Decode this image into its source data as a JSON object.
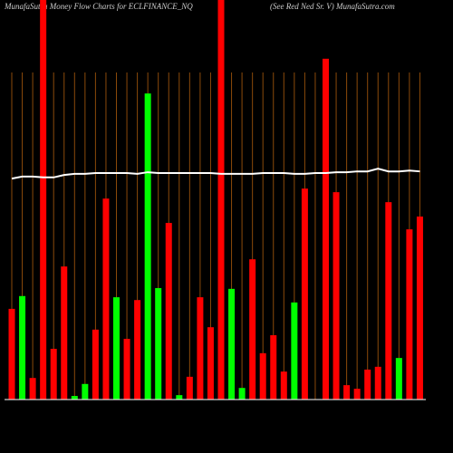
{
  "chart_data": {
    "type": "bar",
    "title": "MunafaSutra  Money Flow  Charts for ECLFINANCE_NQ",
    "subtitle": "(See Red Ned Sr. V) MunafaSutra.com",
    "categories": [
      null,
      null,
      null,
      null,
      null,
      null,
      null,
      null,
      null,
      null,
      null,
      null,
      null,
      null,
      null,
      null,
      null,
      null,
      null,
      null,
      null,
      null,
      null,
      null,
      null,
      null,
      null,
      null,
      null,
      null,
      null,
      null,
      null,
      null,
      null,
      null,
      null,
      null,
      null,
      null
    ],
    "values": [
      22.7,
      25.9,
      5.4,
      100,
      12.7,
      33.3,
      0.9,
      3.9,
      17.5,
      50.3,
      25.6,
      15.2,
      24.9,
      76.6,
      27.9,
      44.2,
      1.1,
      5.7,
      25.6,
      18.1,
      100,
      27.7,
      2.9,
      35.1,
      11.6,
      16.1,
      7.0,
      24.3,
      52.8,
      0,
      85.3,
      51.9,
      3.6,
      2.7,
      7.5,
      8.2,
      49.4,
      10.4,
      42.6,
      45.8
    ],
    "colors": [
      "#ff0000",
      "#00ff00",
      "#ff0000",
      "#ff0000",
      "#ff0000",
      "#ff0000",
      "#00ff00",
      "#00ff00",
      "#ff0000",
      "#ff0000",
      "#00ff00",
      "#ff0000",
      "#ff0000",
      "#00ff00",
      "#00ff00",
      "#ff0000",
      "#00ff00",
      "#ff0000",
      "#ff0000",
      "#ff0000",
      "#ff0000",
      "#00ff00",
      "#00ff00",
      "#ff0000",
      "#ff0000",
      "#ff0000",
      "#ff0000",
      "#00ff00",
      "#ff0000",
      "#ff0000",
      "#ff0000",
      "#ff0000",
      "#ff0000",
      "#ff0000",
      "#ff0000",
      "#ff0000",
      "#ff0000",
      "#00ff00",
      "#ff0000",
      "#ff0000"
    ],
    "line": {
      "color": "#ffffff",
      "values": [
        55.3,
        55.8,
        55.8,
        55.6,
        55.6,
        56.2,
        56.5,
        56.5,
        56.7,
        56.7,
        56.7,
        56.7,
        56.5,
        56.9,
        56.7,
        56.7,
        56.7,
        56.7,
        56.7,
        56.7,
        56.5,
        56.5,
        56.5,
        56.5,
        56.7,
        56.7,
        56.7,
        56.5,
        56.5,
        56.7,
        56.7,
        56.9,
        56.9,
        57.1,
        57.1,
        57.8,
        57.1,
        57.1,
        57.3,
        57.1
      ]
    },
    "ylim": [
      0,
      100
    ],
    "grid": true,
    "grid_color": "#8b4a0a",
    "background": "#000000"
  }
}
